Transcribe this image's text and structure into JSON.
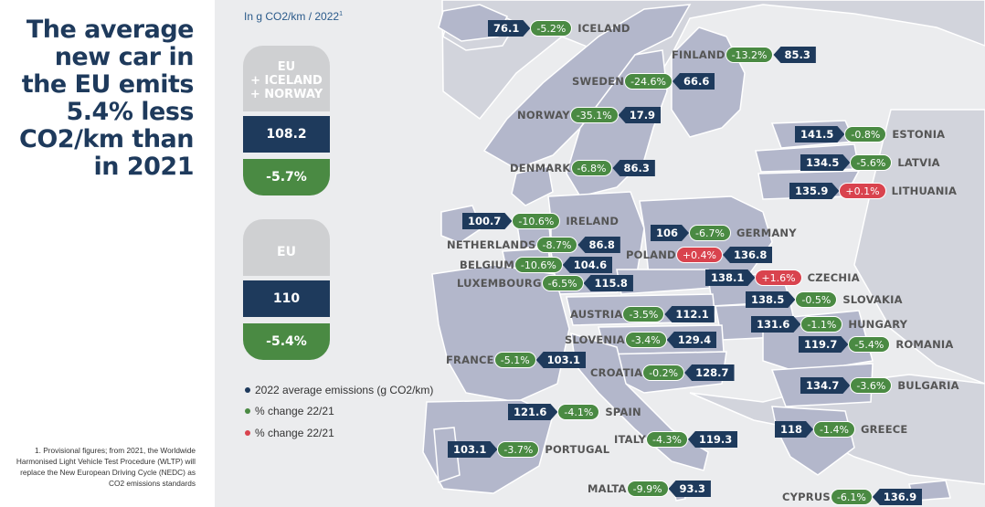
{
  "headline": "The average new car in the EU emits 5.4% less CO2/km than in 2021",
  "unit_note": "In g CO2/km / 2022",
  "unit_sup": "1",
  "aggregates": [
    {
      "label": "EU\n+ ICELAND\n+ NORWAY",
      "value": "108.2",
      "change": "-5.7%"
    },
    {
      "label": "EU",
      "value": "110",
      "change": "-5.4%"
    }
  ],
  "legend": [
    {
      "text": "2022 average emissions (g CO2/km)",
      "color": "#1e3a5c"
    },
    {
      "text": "% change 22/21",
      "color": "#4a8a43"
    },
    {
      "text": "% change 22/21",
      "color": "#d9434e"
    }
  ],
  "footnote": "1. Provisional figures; from 2021, the Worldwide Harmonised Light Vehicle Test Procedure (WLTP) will replace the New European Driving Cycle (NEDC) as CO2 emissions standards",
  "colors": {
    "navy": "#1e3a5c",
    "green": "#4a8a43",
    "red": "#d9434e",
    "map_fill": "#b3b7cb",
    "map_bg": "#ebecee"
  },
  "countries": [
    {
      "name": "ICELAND",
      "value": "76.1",
      "change": "-5.2%",
      "direction": "down"
    },
    {
      "name": "FINLAND",
      "value": "85.3",
      "change": "-13.2%",
      "direction": "down"
    },
    {
      "name": "SWEDEN",
      "value": "66.6",
      "change": "-24.6%",
      "direction": "down"
    },
    {
      "name": "NORWAY",
      "value": "17.9",
      "change": "-35.1%",
      "direction": "down"
    },
    {
      "name": "ESTONIA",
      "value": "141.5",
      "change": "-0.8%",
      "direction": "down"
    },
    {
      "name": "DENMARK",
      "value": "86.3",
      "change": "-6.8%",
      "direction": "down"
    },
    {
      "name": "LATVIA",
      "value": "134.5",
      "change": "-5.6%",
      "direction": "down"
    },
    {
      "name": "LITHUANIA",
      "value": "135.9",
      "change": "+0.1%",
      "direction": "up"
    },
    {
      "name": "IRELAND",
      "value": "100.7",
      "change": "-10.6%",
      "direction": "down"
    },
    {
      "name": "GERMANY",
      "value": "106",
      "change": "-6.7%",
      "direction": "down"
    },
    {
      "name": "NETHERLANDS",
      "value": "86.8",
      "change": "-8.7%",
      "direction": "down"
    },
    {
      "name": "POLAND",
      "value": "136.8",
      "change": "+0.4%",
      "direction": "up"
    },
    {
      "name": "BELGIUM",
      "value": "104.6",
      "change": "-10.6%",
      "direction": "down"
    },
    {
      "name": "CZECHIA",
      "value": "138.1",
      "change": "+1.6%",
      "direction": "up"
    },
    {
      "name": "LUXEMBOURG",
      "value": "115.8",
      "change": "-6.5%",
      "direction": "down"
    },
    {
      "name": "SLOVAKIA",
      "value": "138.5",
      "change": "-0.5%",
      "direction": "down"
    },
    {
      "name": "AUSTRIA",
      "value": "112.1",
      "change": "-3.5%",
      "direction": "down"
    },
    {
      "name": "HUNGARY",
      "value": "131.6",
      "change": "-1.1%",
      "direction": "down"
    },
    {
      "name": "SLOVENIA",
      "value": "129.4",
      "change": "-3.4%",
      "direction": "down"
    },
    {
      "name": "ROMANIA",
      "value": "119.7",
      "change": "-5.4%",
      "direction": "down"
    },
    {
      "name": "FRANCE",
      "value": "103.1",
      "change": "-5.1%",
      "direction": "down"
    },
    {
      "name": "CROATIA",
      "value": "128.7",
      "change": "-0.2%",
      "direction": "down"
    },
    {
      "name": "BULGARIA",
      "value": "134.7",
      "change": "-3.6%",
      "direction": "down"
    },
    {
      "name": "SPAIN",
      "value": "121.6",
      "change": "-4.1%",
      "direction": "down"
    },
    {
      "name": "GREECE",
      "value": "118",
      "change": "-1.4%",
      "direction": "down"
    },
    {
      "name": "PORTUGAL",
      "value": "103.1",
      "change": "-3.7%",
      "direction": "down"
    },
    {
      "name": "ITALY",
      "value": "119.3",
      "change": "-4.3%",
      "direction": "down"
    },
    {
      "name": "MALTA",
      "value": "93.3",
      "change": "-9.9%",
      "direction": "down"
    },
    {
      "name": "CYPRUS",
      "value": "136.9",
      "change": "-6.1%",
      "direction": "down"
    }
  ]
}
